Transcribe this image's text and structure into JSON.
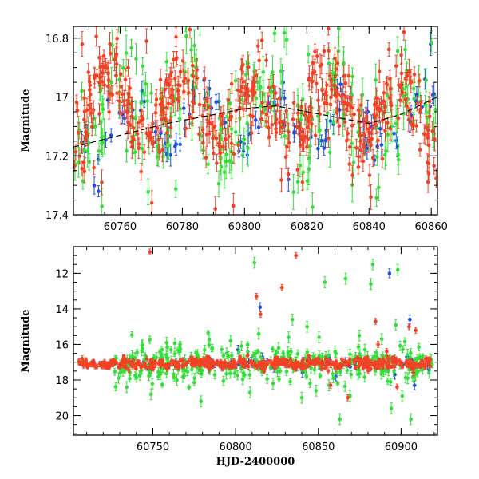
{
  "chart_data": [
    {
      "type": "scatter",
      "title": "",
      "xlabel": "",
      "ylabel": "Magnitude",
      "xlim": [
        60745,
        60862
      ],
      "ylim": [
        17.4,
        16.76
      ],
      "y_inverted": true,
      "x_ticks": [
        60760,
        60780,
        60800,
        60820,
        60840,
        60860
      ],
      "x_tick_labels": [
        "60760",
        "60780",
        "60800",
        "60820",
        "60840",
        "60860"
      ],
      "x_minor_step": 5,
      "y_ticks": [
        16.8,
        17,
        17.2,
        17.4
      ],
      "y_tick_labels": [
        "16.8",
        "17",
        "17.2",
        "17.4"
      ],
      "y_minor_step": 0.05,
      "grid": false,
      "legend": "none",
      "trend": [
        [
          60745,
          17.17
        ],
        [
          60760,
          17.13
        ],
        [
          60775,
          17.09
        ],
        [
          60790,
          17.06
        ],
        [
          60800,
          17.04
        ],
        [
          60810,
          17.03
        ],
        [
          60825,
          17.06
        ],
        [
          60840,
          17.09
        ],
        [
          60850,
          17.06
        ],
        [
          60862,
          17.0
        ]
      ],
      "series": [
        {
          "color": "#1f4fe0",
          "sampling": {
            "start": 60745.0,
            "end": 60861.8,
            "count": 90,
            "baseline": 17.09,
            "amplitude": 0.09,
            "scatter": 0.04,
            "error_bar": 0.028,
            "seed": 11
          },
          "points": [
            [
              60812.4,
              16.95
            ],
            [
              60814.1,
              17.28
            ],
            [
              60838.2,
              17.08
            ],
            [
              60839.6,
              17.05
            ],
            [
              60840.8,
              17.1
            ],
            [
              60841.7,
              17.07
            ],
            [
              60859.8,
              16.82
            ],
            [
              60860.9,
              16.99
            ]
          ]
        },
        {
          "color": "#33e03a",
          "sampling": {
            "start": 60745.0,
            "end": 60861.8,
            "count": 230,
            "baseline": 17.05,
            "amplitude": 0.12,
            "scatter": 0.11,
            "error_bar": 0.045,
            "seed": 23
          },
          "points": []
        },
        {
          "color": "#f04326",
          "sampling": {
            "start": 60745.0,
            "end": 60861.8,
            "count": 460,
            "baseline": 17.04,
            "amplitude": 0.11,
            "scatter": 0.075,
            "error_bar": 0.03,
            "seed": 37
          },
          "points": [
            [
              60747.8,
              16.82
            ],
            [
              60754.1,
              17.29
            ],
            [
              60768.5,
              16.81
            ],
            [
              60770.2,
              17.36
            ],
            [
              60790.6,
              17.38
            ],
            [
              60796.4,
              17.37
            ],
            [
              60840.6,
              17.34
            ]
          ]
        }
      ]
    },
    {
      "type": "scatter",
      "title": "",
      "xlabel": "HJD-2400000",
      "ylabel": "Magnitude",
      "xlim": [
        60702,
        60922
      ],
      "ylim": [
        21.1,
        10.5
      ],
      "y_inverted": true,
      "x_ticks": [
        60750,
        60800,
        60850,
        60900
      ],
      "x_tick_labels": [
        "60750",
        "60800",
        "60850",
        "60900"
      ],
      "x_minor_step": 10,
      "y_ticks": [
        12,
        14,
        16,
        18,
        20
      ],
      "y_tick_labels": [
        "12",
        "14",
        "16",
        "18",
        "20"
      ],
      "y_minor_step": 0.5,
      "grid": false,
      "legend": "none",
      "series": [
        {
          "color": "#1f4fe0",
          "sampling": {
            "start": 60730.0,
            "end": 60918.0,
            "count": 60,
            "baseline": 17.1,
            "amplitude": 0.1,
            "scatter": 0.12,
            "error_bar": 0.18,
            "seed": 51
          },
          "points": [
            [
              60801.5,
              16.3
            ],
            [
              60814.8,
              13.9
            ],
            [
              60840.4,
              17.6
            ],
            [
              60860.6,
              17.8
            ],
            [
              60893.0,
              12.0
            ],
            [
              60896.2,
              17.7
            ],
            [
              60905.3,
              14.6
            ],
            [
              60908.1,
              18.3
            ]
          ]
        },
        {
          "color": "#33e03a",
          "sampling": {
            "start": 60727.0,
            "end": 60919.0,
            "count": 320,
            "baseline": 17.05,
            "amplitude": 0.15,
            "scatter": 0.45,
            "error_bar": 0.22,
            "seed": 67
          },
          "points": [
            [
              60734.2,
              18.4
            ],
            [
              60748.9,
              18.8
            ],
            [
              60758.3,
              15.9
            ],
            [
              60764.5,
              18.0
            ],
            [
              60779.1,
              19.2
            ],
            [
              60797.0,
              15.8
            ],
            [
              60808.7,
              18.7
            ],
            [
              60811.4,
              11.4
            ],
            [
              60814.0,
              15.4
            ],
            [
              60822.6,
              18.2
            ],
            [
              60826.0,
              16.2
            ],
            [
              60832.1,
              15.6
            ],
            [
              60834.3,
              14.6
            ],
            [
              60840.0,
              19.0
            ],
            [
              60843.2,
              15.0
            ],
            [
              60848.6,
              18.6
            ],
            [
              60850.4,
              15.6
            ],
            [
              60853.9,
              12.5
            ],
            [
              60856.4,
              18.3
            ],
            [
              60860.1,
              16.4
            ],
            [
              60866.5,
              12.3
            ],
            [
              60869.2,
              18.9
            ],
            [
              60874.8,
              15.5
            ],
            [
              60878.1,
              16.3
            ],
            [
              60881.7,
              12.6
            ],
            [
              60882.9,
              11.5
            ],
            [
              60888.3,
              15.7
            ],
            [
              60890.5,
              17.4
            ],
            [
              60894.1,
              19.6
            ],
            [
              60896.8,
              14.9
            ],
            [
              60898.0,
              11.8
            ],
            [
              60900.7,
              18.9
            ],
            [
              60904.0,
              17.9
            ],
            [
              60905.9,
              20.2
            ],
            [
              60908.7,
              17.7
            ],
            [
              60863.0,
              20.2
            ]
          ]
        },
        {
          "color": "#f04326",
          "sampling": {
            "start": 60705.0,
            "end": 60918.0,
            "count": 520,
            "baseline": 17.08,
            "amplitude": 0.08,
            "scatter": 0.14,
            "error_bar": 0.12,
            "seed": 83
          },
          "points": [
            [
              60748.2,
              10.8
            ],
            [
              60812.6,
              13.3
            ],
            [
              60815.1,
              14.3
            ],
            [
              60828.0,
              12.8
            ],
            [
              60836.5,
              11.0
            ],
            [
              60857.4,
              18.3
            ],
            [
              60867.8,
              19.0
            ],
            [
              60884.6,
              14.7
            ],
            [
              60886.1,
              16.0
            ],
            [
              60891.3,
              16.4
            ],
            [
              60897.6,
              18.4
            ],
            [
              60904.8,
              15.0
            ],
            [
              60907.4,
              17.6
            ],
            [
              60908.8,
              15.2
            ]
          ]
        }
      ]
    }
  ]
}
